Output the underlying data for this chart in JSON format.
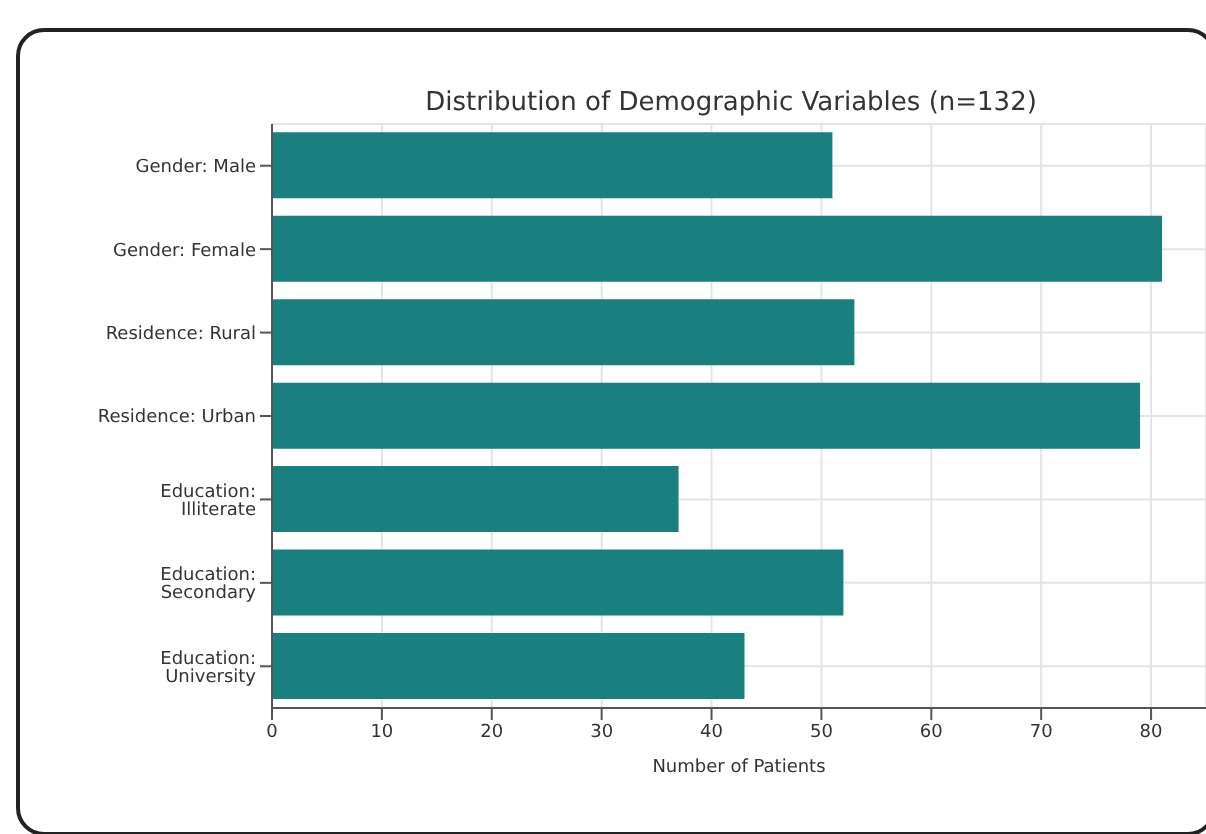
{
  "chart_data": {
    "type": "bar",
    "orientation": "horizontal",
    "title": "Distribution of Demographic Variables (n=132)",
    "xlabel": "Number of Patients",
    "categories": [
      "Gender: Male",
      "Gender: Female",
      "Residence: Rural",
      "Residence: Urban",
      "Education: Illiterate",
      "Education: Secondary",
      "Education: University"
    ],
    "values": [
      51,
      81,
      53,
      79,
      37,
      52,
      43
    ],
    "color": "#1a7f7f",
    "xlim": [
      0,
      85
    ],
    "xticks": [
      0,
      10,
      20,
      30,
      40,
      50,
      60,
      70,
      80
    ],
    "grid": true
  }
}
